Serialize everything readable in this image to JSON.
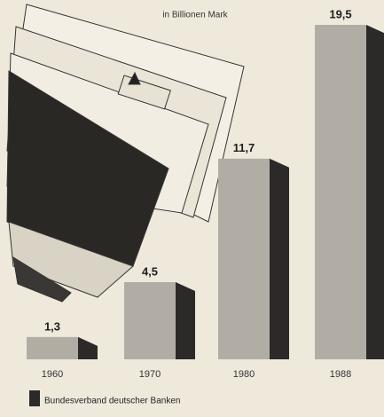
{
  "chart_data": {
    "type": "bar3d",
    "subtitle": "in Billionen Mark",
    "categories": [
      "1960",
      "1970",
      "1980",
      "1988"
    ],
    "values": [
      1.3,
      4.5,
      11.7,
      19.5
    ],
    "value_labels": [
      "1,3",
      "4,5",
      "11,7",
      "19,5"
    ],
    "color": "#b1ada5",
    "side_color": "#2b2a28",
    "source": "Bundesverband deutscher Banken"
  }
}
